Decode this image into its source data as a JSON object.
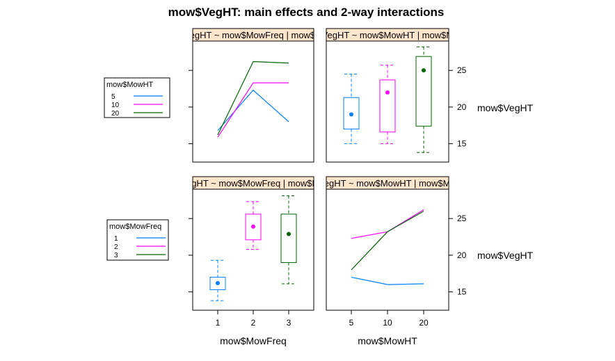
{
  "chart_data": {
    "type": "lattice-interaction-plot",
    "title": "mow$VegHT: main effects and 2-way interactions",
    "y_label": "mow$VegHT",
    "x_labels": [
      "mow$MowFreq",
      "mow$MowHT"
    ],
    "ylim": [
      12.5,
      29
    ],
    "y_ticks": [
      15,
      20,
      25
    ],
    "legends": [
      {
        "title": "mow$MowHT",
        "entries": [
          {
            "label": "5",
            "color": "#0080ff"
          },
          {
            "label": "10",
            "color": "#ff00ff"
          },
          {
            "label": "20",
            "color": "#006400"
          }
        ]
      },
      {
        "title": "mow$MowFreq",
        "entries": [
          {
            "label": "1",
            "color": "#0080ff"
          },
          {
            "label": "2",
            "color": "#ff00ff"
          },
          {
            "label": "3",
            "color": "#006400"
          }
        ]
      }
    ],
    "panels": [
      {
        "id": "top-left",
        "type": "line",
        "strip": "mow$VegHT ~ mow$MowFreq | mow$MowHT",
        "x_categories": [
          "1",
          "2",
          "3"
        ],
        "show_x_ticks": false,
        "series": [
          {
            "name": "5",
            "color": "#0080ff",
            "values": [
              16.8,
              22.3,
              18.0
            ]
          },
          {
            "name": "10",
            "color": "#ff00ff",
            "values": [
              15.9,
              23.3,
              23.3
            ]
          },
          {
            "name": "20",
            "color": "#006400",
            "values": [
              16.2,
              26.2,
              26.0
            ]
          }
        ]
      },
      {
        "id": "top-right",
        "type": "box",
        "strip": "mow$VegHT ~ mow$MowHT | mow$MowHT",
        "x_categories": [
          "5",
          "10",
          "20"
        ],
        "show_x_ticks": false,
        "boxes": [
          {
            "category": "5",
            "color": "#0080ff",
            "min": 15.0,
            "q1": 17.0,
            "median": 19.0,
            "q3": 21.3,
            "max": 24.5,
            "mean": 19.0
          },
          {
            "category": "10",
            "color": "#ff00ff",
            "min": 15.0,
            "q1": 16.6,
            "median": 22.0,
            "q3": 23.7,
            "max": 25.7,
            "mean": 22.0
          },
          {
            "category": "20",
            "color": "#006400",
            "min": 13.8,
            "q1": 17.4,
            "median": 25.0,
            "q3": 26.9,
            "max": 28.2,
            "mean": 25.0
          }
        ]
      },
      {
        "id": "bottom-left",
        "type": "box",
        "strip": "mow$VegHT ~ mow$MowFreq | mow$MowFreq",
        "x_categories": [
          "1",
          "2",
          "3"
        ],
        "show_x_ticks": true,
        "boxes": [
          {
            "category": "1",
            "color": "#0080ff",
            "min": 13.8,
            "q1": 15.3,
            "median": 16.2,
            "q3": 17.0,
            "max": 19.3,
            "mean": 16.2
          },
          {
            "category": "2",
            "color": "#ff00ff",
            "min": 20.8,
            "q1": 22.1,
            "median": 23.9,
            "q3": 25.6,
            "max": 27.3,
            "mean": 23.9
          },
          {
            "category": "3",
            "color": "#006400",
            "min": 16.1,
            "q1": 19.0,
            "median": 22.9,
            "q3": 25.6,
            "max": 28.1,
            "mean": 22.9
          }
        ]
      },
      {
        "id": "bottom-right",
        "type": "line",
        "strip": "mow$VegHT ~ mow$MowHT | mow$MowFreq",
        "x_categories": [
          "5",
          "10",
          "20"
        ],
        "show_x_ticks": true,
        "series": [
          {
            "name": "1",
            "color": "#0080ff",
            "values": [
              17.0,
              16.0,
              16.1
            ]
          },
          {
            "name": "2",
            "color": "#ff00ff",
            "values": [
              22.3,
              23.2,
              26.2
            ]
          },
          {
            "name": "3",
            "color": "#006400",
            "values": [
              18.0,
              23.2,
              26.0
            ]
          }
        ]
      }
    ]
  }
}
